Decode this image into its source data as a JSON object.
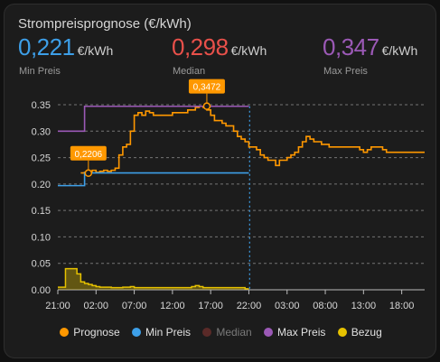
{
  "card": {
    "title": "Strompreisprognose (€/kWh)"
  },
  "stats": [
    {
      "value": "0,221",
      "unit": "€/kWh",
      "label": "Min Preis",
      "color": "#3d9fe8"
    },
    {
      "value": "0,298",
      "unit": "€/kWh",
      "label": "Median",
      "color": "#e8504a"
    },
    {
      "value": "0,347",
      "unit": "€/kWh",
      "label": "Max Preis",
      "color": "#9b59b6"
    }
  ],
  "legend": [
    {
      "label": "Prognose",
      "color": "#ff9800",
      "muted": false
    },
    {
      "label": "Min Preis",
      "color": "#3d9fe8",
      "muted": false
    },
    {
      "label": "Median",
      "color": "#5a2a28",
      "muted": true
    },
    {
      "label": "Max Preis",
      "color": "#9b59b6",
      "muted": false
    },
    {
      "label": "Bezug",
      "color": "#e6c200",
      "muted": false
    }
  ],
  "chart_data": {
    "type": "line",
    "x_unit": "hours",
    "x_range": [
      0,
      48
    ],
    "ylim": [
      0,
      0.35
    ],
    "y_ticks": [
      "0.00",
      "0.05",
      "0.10",
      "0.15",
      "0.20",
      "0.25",
      "0.30",
      "0.35"
    ],
    "y_tick_values": [
      0,
      0.05,
      0.1,
      0.15,
      0.2,
      0.25,
      0.3,
      0.35
    ],
    "x_ticks": [
      "21:00",
      "02:00",
      "07:00",
      "12:00",
      "17:00",
      "22:00",
      "03:00",
      "08:00",
      "13:00",
      "18:00"
    ],
    "x_tick_values": [
      0,
      5,
      10,
      15,
      20,
      25,
      30,
      35,
      40,
      45
    ],
    "now_x": 25.1,
    "series": [
      {
        "name": "Prognose",
        "color": "#ff9800",
        "style": "step",
        "x": [
          3,
          3.5,
          4,
          4.5,
          5,
          5.5,
          6,
          6.5,
          7,
          7.5,
          8,
          8.5,
          9,
          9.5,
          10,
          10.5,
          11,
          11.5,
          12,
          12.5,
          13,
          13.5,
          14,
          14.5,
          15,
          15.5,
          16,
          16.5,
          17,
          17.5,
          18,
          18.5,
          19,
          19.5,
          20,
          20.5,
          21,
          21.5,
          22,
          22.5,
          23,
          23.5,
          24,
          24.5,
          25,
          25.5,
          26,
          26.5,
          27,
          27.5,
          28,
          28.5,
          29,
          29.5,
          30,
          30.5,
          31,
          31.5,
          32,
          32.5,
          33,
          33.5,
          34,
          34.5,
          35,
          35.5,
          36,
          36.5,
          37,
          37.5,
          38,
          38.5,
          39,
          39.5,
          40,
          40.5,
          41,
          41.5,
          42,
          42.5,
          43,
          43.5,
          44,
          44.5,
          45,
          45.5,
          46,
          46.5,
          47,
          47.5,
          48
        ],
        "y": [
          0.221,
          0.222,
          0.224,
          0.226,
          0.222,
          0.224,
          0.226,
          0.224,
          0.226,
          0.23,
          0.255,
          0.27,
          0.275,
          0.3,
          0.33,
          0.335,
          0.33,
          0.338,
          0.335,
          0.33,
          0.33,
          0.33,
          0.33,
          0.33,
          0.335,
          0.335,
          0.335,
          0.335,
          0.34,
          0.34,
          0.345,
          0.347,
          0.345,
          0.34,
          0.33,
          0.32,
          0.32,
          0.315,
          0.31,
          0.31,
          0.3,
          0.29,
          0.285,
          0.28,
          0.27,
          0.27,
          0.265,
          0.255,
          0.25,
          0.245,
          0.245,
          0.235,
          0.245,
          0.245,
          0.25,
          0.255,
          0.26,
          0.27,
          0.28,
          0.29,
          0.285,
          0.28,
          0.28,
          0.275,
          0.275,
          0.27,
          0.27,
          0.27,
          0.27,
          0.27,
          0.27,
          0.27,
          0.27,
          0.265,
          0.26,
          0.265,
          0.27,
          0.27,
          0.27,
          0.265,
          0.26,
          0.26,
          0.26,
          0.26,
          0.26,
          0.26,
          0.26,
          0.26,
          0.26,
          0.26,
          0.26
        ]
      },
      {
        "name": "Min Preis",
        "color": "#3d9fe8",
        "style": "step",
        "x": [
          0,
          3,
          3.5,
          25
        ],
        "y": [
          0.197,
          0.197,
          0.221,
          0.221
        ]
      },
      {
        "name": "Max Preis",
        "color": "#9b59b6",
        "style": "step",
        "x": [
          0,
          3,
          3.5,
          25
        ],
        "y": [
          0.3,
          0.3,
          0.347,
          0.347
        ]
      },
      {
        "name": "Bezug",
        "color": "#e6c200",
        "style": "area",
        "x": [
          0,
          0.5,
          1,
          1.5,
          2,
          2.5,
          3,
          3.5,
          4,
          4.5,
          5,
          5.5,
          6,
          6.5,
          7,
          7.5,
          8,
          8.5,
          9,
          9.5,
          10,
          10.5,
          11,
          11.5,
          12,
          12.5,
          13,
          13.5,
          14,
          14.5,
          15,
          15.5,
          16,
          16.5,
          17,
          17.5,
          18,
          18.5,
          19,
          19.5,
          20,
          20.5,
          21,
          21.5,
          22,
          22.5,
          23,
          23.5,
          24,
          24.5,
          25
        ],
        "y": [
          0.005,
          0.005,
          0.04,
          0.04,
          0.04,
          0.03,
          0.015,
          0.012,
          0.01,
          0.008,
          0.006,
          0.005,
          0.005,
          0.005,
          0.004,
          0.004,
          0.004,
          0.005,
          0.005,
          0.006,
          0.004,
          0.004,
          0.004,
          0.004,
          0.004,
          0.004,
          0.004,
          0.004,
          0.004,
          0.004,
          0.004,
          0.004,
          0.004,
          0.004,
          0.004,
          0.006,
          0.008,
          0.006,
          0.004,
          0.004,
          0.004,
          0.004,
          0.004,
          0.004,
          0.004,
          0.004,
          0.004,
          0.004,
          0.004,
          0.002,
          0.002
        ]
      }
    ],
    "annotations": [
      {
        "text": "0,2206",
        "x": 4,
        "y": 0.2206
      },
      {
        "text": "0,3472",
        "x": 19.5,
        "y": 0.3472
      }
    ]
  }
}
